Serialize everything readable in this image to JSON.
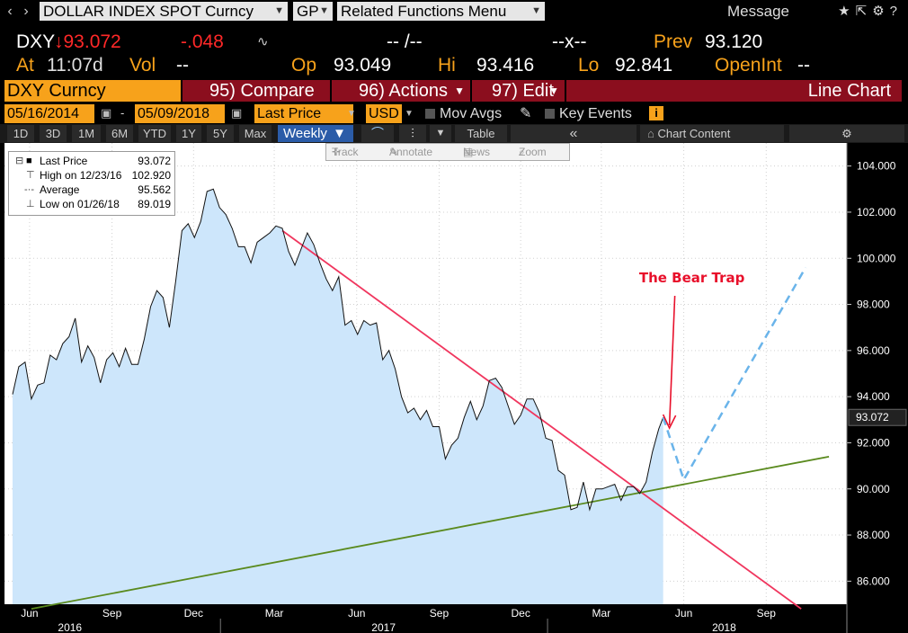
{
  "command_bar": {
    "back_icon": "chevron-left-icon",
    "forward_icon": "chevron-right-icon",
    "security": "DOLLAR INDEX SPOT Curncy",
    "function": "GP",
    "menu": "Related Functions Menu",
    "message": "Message",
    "right_icons": [
      "star-icon",
      "export-icon",
      "settings-icon",
      "help-icon"
    ]
  },
  "quote": {
    "ticker": "DXY",
    "last": "↓93.072",
    "change": "-.048",
    "bid_ask": "-- /--",
    "size": "--x--",
    "prev_label": "Prev",
    "prev": "93.120",
    "at_label": "At",
    "time": "11:07d",
    "vol_label": "Vol",
    "vol": "--",
    "open_label": "Op",
    "open": "93.049",
    "high_label": "Hi",
    "high": "93.416",
    "low_label": "Lo",
    "low": "92.841",
    "oi_label": "OpenInt",
    "oi": "--"
  },
  "header": {
    "security": "DXY Curncy",
    "compare": "95) Compare",
    "actions": "96) Actions",
    "edit": "97) Edit",
    "chart_type": "Line Chart"
  },
  "settings": {
    "start_date": "05/16/2014",
    "end_date": "05/09/2018",
    "field": "Last Price",
    "currency": "USD",
    "mov_avgs": "Mov Avgs",
    "key_events": "Key Events"
  },
  "periods": {
    "buttons": [
      "1D",
      "3D",
      "1M",
      "6M",
      "YTD",
      "1Y",
      "5Y",
      "Max"
    ],
    "frequency": "Weekly",
    "table": "Table",
    "chart_content": "Chart Content"
  },
  "tools": [
    "Track",
    "Annotate",
    "News",
    "Zoom"
  ],
  "legend": [
    {
      "label": "Last Price",
      "value": "93.072"
    },
    {
      "label": "High on 12/23/16",
      "value": "102.920"
    },
    {
      "label": "Average",
      "value": "95.562"
    },
    {
      "label": "Low on 01/26/18",
      "value": "89.019"
    }
  ],
  "colors": {
    "area_fill": "#cde6fb",
    "price_line": "#111111",
    "downtrend": "#f0365e",
    "uptrend": "#5a8a1e",
    "projection": "#6ab4ea",
    "annotation": "#e8102b",
    "accent": "#f7a21b",
    "header_red": "#8b0e1e"
  },
  "chart_data": {
    "type": "area",
    "title": "",
    "ylim": [
      85,
      105
    ],
    "y_ticks": [
      "104.000",
      "102.000",
      "100.000",
      "98.000",
      "96.000",
      "94.000",
      "92.000",
      "90.000",
      "88.000",
      "86.000"
    ],
    "x_month_labels": [
      {
        "label": "Jun",
        "date": "2016-06-01"
      },
      {
        "label": "Sep",
        "date": "2016-09-01"
      },
      {
        "label": "Dec",
        "date": "2016-12-01"
      },
      {
        "label": "Mar",
        "date": "2017-03-01"
      },
      {
        "label": "Jun",
        "date": "2017-06-01"
      },
      {
        "label": "Sep",
        "date": "2017-09-01"
      },
      {
        "label": "Dec",
        "date": "2017-12-01"
      },
      {
        "label": "Mar",
        "date": "2018-03-01"
      },
      {
        "label": "Jun",
        "date": "2018-06-01"
      },
      {
        "label": "Sep",
        "date": "2018-09-01"
      }
    ],
    "x_year_labels": [
      {
        "label": "2016",
        "date": "2016-07-16"
      },
      {
        "label": "2017",
        "date": "2017-07-01"
      },
      {
        "label": "2018",
        "date": "2018-07-16"
      }
    ],
    "last_price_label": "93.072",
    "series": [
      {
        "name": "Last Price",
        "points": [
          [
            "2016-05-13",
            94.1
          ],
          [
            "2016-05-20",
            95.3
          ],
          [
            "2016-05-27",
            95.5
          ],
          [
            "2016-06-03",
            93.9
          ],
          [
            "2016-06-10",
            94.5
          ],
          [
            "2016-06-17",
            94.6
          ],
          [
            "2016-06-24",
            95.8
          ],
          [
            "2016-07-01",
            95.6
          ],
          [
            "2016-07-08",
            96.3
          ],
          [
            "2016-07-15",
            96.6
          ],
          [
            "2016-07-22",
            97.4
          ],
          [
            "2016-07-29",
            95.5
          ],
          [
            "2016-08-05",
            96.2
          ],
          [
            "2016-08-12",
            95.7
          ],
          [
            "2016-08-19",
            94.6
          ],
          [
            "2016-08-26",
            95.6
          ],
          [
            "2016-09-02",
            95.9
          ],
          [
            "2016-09-09",
            95.3
          ],
          [
            "2016-09-16",
            96.1
          ],
          [
            "2016-09-23",
            95.4
          ],
          [
            "2016-09-30",
            95.4
          ],
          [
            "2016-10-07",
            96.5
          ],
          [
            "2016-10-14",
            97.9
          ],
          [
            "2016-10-21",
            98.6
          ],
          [
            "2016-10-28",
            98.3
          ],
          [
            "2016-11-04",
            97.0
          ],
          [
            "2016-11-11",
            99.0
          ],
          [
            "2016-11-18",
            101.2
          ],
          [
            "2016-11-25",
            101.5
          ],
          [
            "2016-12-02",
            100.9
          ],
          [
            "2016-12-09",
            101.6
          ],
          [
            "2016-12-16",
            102.9
          ],
          [
            "2016-12-23",
            103.0
          ],
          [
            "2016-12-30",
            102.2
          ],
          [
            "2017-01-06",
            101.9
          ],
          [
            "2017-01-13",
            101.3
          ],
          [
            "2017-01-20",
            100.5
          ],
          [
            "2017-01-27",
            100.5
          ],
          [
            "2017-02-03",
            99.8
          ],
          [
            "2017-02-10",
            100.7
          ],
          [
            "2017-02-17",
            100.9
          ],
          [
            "2017-02-24",
            101.1
          ],
          [
            "2017-03-03",
            101.4
          ],
          [
            "2017-03-10",
            101.3
          ],
          [
            "2017-03-17",
            100.3
          ],
          [
            "2017-03-24",
            99.7
          ],
          [
            "2017-03-31",
            100.4
          ],
          [
            "2017-04-07",
            101.1
          ],
          [
            "2017-04-14",
            100.6
          ],
          [
            "2017-04-21",
            99.8
          ],
          [
            "2017-04-28",
            99.1
          ],
          [
            "2017-05-05",
            98.6
          ],
          [
            "2017-05-12",
            99.2
          ],
          [
            "2017-05-19",
            97.1
          ],
          [
            "2017-05-26",
            97.3
          ],
          [
            "2017-06-02",
            96.7
          ],
          [
            "2017-06-09",
            97.3
          ],
          [
            "2017-06-16",
            97.1
          ],
          [
            "2017-06-23",
            97.2
          ],
          [
            "2017-06-30",
            95.6
          ],
          [
            "2017-07-07",
            96.0
          ],
          [
            "2017-07-14",
            95.2
          ],
          [
            "2017-07-21",
            94.0
          ],
          [
            "2017-07-28",
            93.3
          ],
          [
            "2017-08-04",
            93.5
          ],
          [
            "2017-08-11",
            93.0
          ],
          [
            "2017-08-18",
            93.4
          ],
          [
            "2017-08-25",
            92.7
          ],
          [
            "2017-09-01",
            92.7
          ],
          [
            "2017-09-08",
            91.3
          ],
          [
            "2017-09-15",
            91.9
          ],
          [
            "2017-09-22",
            92.2
          ],
          [
            "2017-09-29",
            93.1
          ],
          [
            "2017-10-06",
            93.8
          ],
          [
            "2017-10-13",
            93.0
          ],
          [
            "2017-10-20",
            93.6
          ],
          [
            "2017-10-27",
            94.7
          ],
          [
            "2017-11-03",
            94.8
          ],
          [
            "2017-11-10",
            94.4
          ],
          [
            "2017-11-17",
            93.6
          ],
          [
            "2017-11-24",
            92.8
          ],
          [
            "2017-12-01",
            93.2
          ],
          [
            "2017-12-08",
            93.9
          ],
          [
            "2017-12-15",
            93.9
          ],
          [
            "2017-12-22",
            93.3
          ],
          [
            "2017-12-29",
            92.2
          ],
          [
            "2018-01-05",
            92.1
          ],
          [
            "2018-01-12",
            90.8
          ],
          [
            "2018-01-19",
            90.6
          ],
          [
            "2018-01-26",
            89.1
          ],
          [
            "2018-02-02",
            89.2
          ],
          [
            "2018-02-09",
            90.3
          ],
          [
            "2018-02-16",
            89.1
          ],
          [
            "2018-02-23",
            90.0
          ],
          [
            "2018-03-02",
            90.0
          ],
          [
            "2018-03-09",
            90.1
          ],
          [
            "2018-03-16",
            90.2
          ],
          [
            "2018-03-23",
            89.5
          ],
          [
            "2018-03-30",
            90.1
          ],
          [
            "2018-04-06",
            90.1
          ],
          [
            "2018-04-13",
            89.8
          ],
          [
            "2018-04-20",
            90.3
          ],
          [
            "2018-04-27",
            91.6
          ],
          [
            "2018-05-04",
            92.6
          ],
          [
            "2018-05-09",
            93.1
          ]
        ]
      },
      {
        "name": "",
        "points": [
          [
            "2018-05-09",
            93.1
          ],
          [
            "2018-06-01",
            90.4
          ],
          [
            "2018-10-15",
            99.6
          ]
        ]
      }
    ],
    "trendlines": [
      {
        "name": "",
        "start": [
          "2017-03-10",
          101.2
        ],
        "end": [
          "2018-10-10",
          84.8
        ]
      },
      {
        "name": "",
        "start": [
          "2016-06-03",
          84.8
        ],
        "end": [
          "2018-11-10",
          91.4
        ]
      }
    ],
    "annotations": [
      {
        "text": "The Bear Trap",
        "target": [
          "2018-05-16",
          92.6
        ]
      }
    ]
  }
}
